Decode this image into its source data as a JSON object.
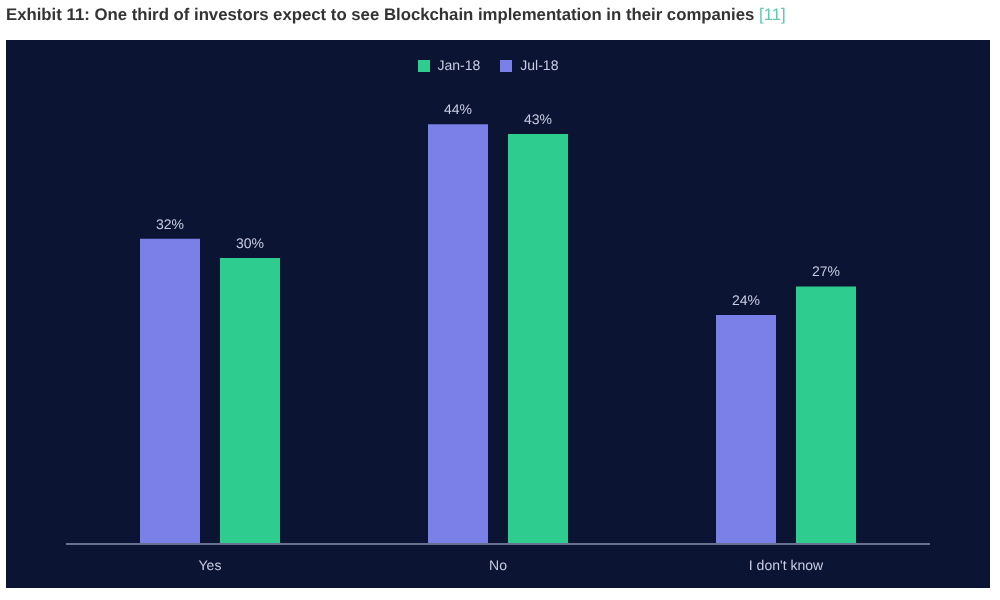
{
  "chart_data": {
    "type": "bar",
    "title": "Exhibit 11: One third of investors expect to see Blockchain implementation in their companies",
    "annotations": [
      "[11]"
    ],
    "categories": [
      "Yes",
      "No",
      "I don't know"
    ],
    "series": [
      {
        "name": "Jul-18",
        "color": "#7b7fe8",
        "values": [
          32,
          44,
          24
        ],
        "value_labels": [
          "32%",
          "44%",
          "24%"
        ]
      },
      {
        "name": "Jan-18",
        "color": "#2ecc8e",
        "values": [
          30,
          43,
          27
        ],
        "value_labels": [
          "30%",
          "43%",
          "27%"
        ]
      }
    ],
    "legend": "top",
    "grid": false
  }
}
